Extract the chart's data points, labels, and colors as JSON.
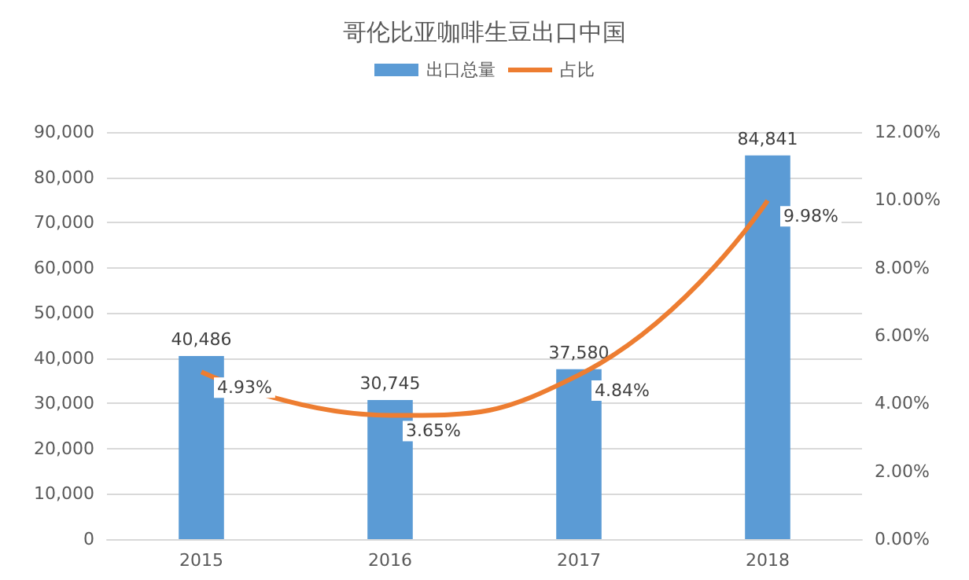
{
  "chart_data": {
    "type": "bar",
    "title": "哥伦比亚咖啡生豆出口中国",
    "categories": [
      "2015",
      "2016",
      "2017",
      "2018"
    ],
    "series": [
      {
        "name": "出口总量",
        "color": "#5b9bd5",
        "values": [
          40486,
          30745,
          37580,
          84841
        ],
        "value_labels": [
          "40,486",
          "30,745",
          "37,580",
          "84,841"
        ]
      },
      {
        "name": "占比",
        "type": "line",
        "axis": "y2",
        "color": "#ed7d31",
        "values": [
          4.93,
          3.65,
          4.84,
          9.98
        ],
        "value_labels": [
          "4.93%",
          "3.65%",
          "4.84%",
          "9.98%"
        ]
      }
    ],
    "ylim": [
      0,
      90000
    ],
    "yticks": [
      {
        "value": 0,
        "label": "0"
      },
      {
        "value": 10000,
        "label": "10,000"
      },
      {
        "value": 20000,
        "label": "20,000"
      },
      {
        "value": 30000,
        "label": "30,000"
      },
      {
        "value": 40000,
        "label": "40,000"
      },
      {
        "value": 50000,
        "label": "50,000"
      },
      {
        "value": 60000,
        "label": "60,000"
      },
      {
        "value": 70000,
        "label": "70,000"
      },
      {
        "value": 80000,
        "label": "80,000"
      },
      {
        "value": 90000,
        "label": "90,000"
      }
    ],
    "y2lim": [
      0,
      12
    ],
    "y2ticks": [
      {
        "value": 0,
        "label": "0.00%"
      },
      {
        "value": 2,
        "label": "2.00%"
      },
      {
        "value": 4,
        "label": "4.00%"
      },
      {
        "value": 6,
        "label": "6.00%"
      },
      {
        "value": 8,
        "label": "8.00%"
      },
      {
        "value": 10,
        "label": "10.00%"
      },
      {
        "value": 12,
        "label": "12.00%"
      }
    ],
    "grid": "y",
    "legend": "top",
    "marker": "none"
  }
}
